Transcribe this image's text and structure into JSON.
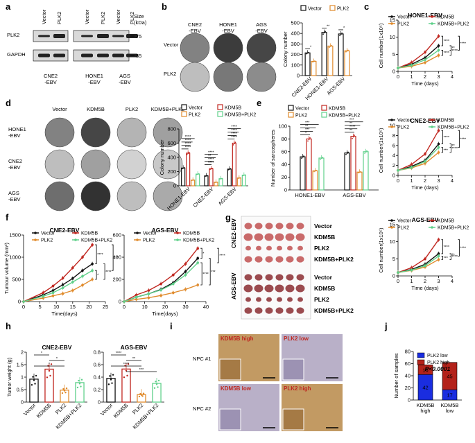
{
  "colors": {
    "vector": "#111111",
    "kdm5b": "#c0261f",
    "plk2": "#e08a2b",
    "combo": "#5fd08a",
    "blue": "#1a2de0",
    "red_bar": "#b3221a"
  },
  "panel_labels": [
    "a",
    "b",
    "c",
    "d",
    "e",
    "f",
    "g",
    "h",
    "i",
    "j"
  ],
  "a": {
    "cols": [
      "Vector",
      "PLK2",
      "Vector",
      "PLK2",
      "Vector",
      "PLK2"
    ],
    "size_label": "Size (kDa)",
    "rows": [
      {
        "name": "PLK2",
        "size": "75"
      },
      {
        "name": "GAPDH",
        "size": "35"
      }
    ],
    "groups": [
      "CNE2\n-EBV",
      "HONE1\n-EBV",
      "AGS\n-EBV"
    ]
  },
  "b": {
    "cols": [
      "CNE2\n-EBV",
      "HONE1\n-EBV",
      "AGS\n-EBV"
    ],
    "rows": [
      "Vector",
      "PLK2"
    ]
  },
  "d": {
    "cols": [
      "Vector",
      "KDM5B",
      "PLK2",
      "KDM5B+PLK2"
    ],
    "rows": [
      "HONE1\n-EBV",
      "CNE2\n-EBV",
      "AGS\n-EBV"
    ]
  },
  "g": {
    "groups": [
      "CNE2-EBV",
      "AGS-EBV"
    ],
    "rows": [
      "Vector",
      "KDM5B",
      "PLK2",
      "KDM5B+PLK2"
    ]
  },
  "i": {
    "rows": [
      "NPC #1",
      "NPC #2"
    ],
    "labels": [
      [
        "KDM5B high",
        "PLK2 low"
      ],
      [
        "KDM5B low",
        "PLK2 high"
      ]
    ]
  },
  "chart_data": [
    {
      "id": "b",
      "type": "bar",
      "ylabel": "Colony number",
      "ylim": [
        0,
        500
      ],
      "yticks": [
        0,
        100,
        200,
        300,
        400,
        500
      ],
      "categories": [
        "CNE2-EBV",
        "HONE1-EBV",
        "AGS-EBV"
      ],
      "series": [
        {
          "name": "Vector",
          "values": [
            215,
            410,
            395
          ]
        },
        {
          "name": "PLK2",
          "values": [
            135,
            280,
            235
          ]
        }
      ],
      "sig": [
        "*",
        "**",
        "*"
      ]
    },
    {
      "id": "c1",
      "type": "line",
      "title": "HONE1-EBV",
      "ylabel": "Cell number(1x10^5)",
      "xlabel": "Time (days)",
      "xlim": [
        0,
        4
      ],
      "ylim": [
        0,
        15
      ],
      "xticks": [
        0,
        1,
        2,
        3,
        4
      ],
      "yticks": [
        0,
        5,
        10,
        15
      ],
      "x": [
        0,
        1,
        2,
        3
      ],
      "series": [
        {
          "name": "Vector",
          "values": [
            1,
            2.1,
            4.0,
            7.5
          ]
        },
        {
          "name": "KDM5B",
          "values": [
            1,
            2.6,
            5.6,
            10.3
          ]
        },
        {
          "name": "PLK2",
          "values": [
            1,
            1.5,
            2.6,
            4.7
          ]
        },
        {
          "name": "KDM5B+PLK2",
          "values": [
            1,
            1.8,
            3.4,
            6.2
          ]
        }
      ],
      "sig": [
        "****",
        "****",
        "****",
        "****",
        "**"
      ]
    },
    {
      "id": "c2",
      "type": "line",
      "title": "CNE2-EBV",
      "ylabel": "Cell number(1x10^5)",
      "xlabel": "Time (days)",
      "xlim": [
        0,
        4
      ],
      "ylim": [
        0,
        10
      ],
      "xticks": [
        0,
        1,
        2,
        3,
        4
      ],
      "yticks": [
        0,
        2,
        4,
        6,
        8,
        10
      ],
      "x": [
        0,
        1,
        2,
        3
      ],
      "series": [
        {
          "name": "Vector",
          "values": [
            1,
            1.8,
            3.0,
            6.3
          ]
        },
        {
          "name": "KDM5B",
          "values": [
            1,
            2.2,
            4.3,
            9.0
          ]
        },
        {
          "name": "PLK2",
          "values": [
            1,
            1.5,
            2.4,
            4.6
          ]
        },
        {
          "name": "KDM5B+PLK2",
          "values": [
            1,
            1.6,
            2.8,
            5.6
          ]
        }
      ],
      "sig": [
        "****",
        "****",
        "****",
        "***",
        "**"
      ]
    },
    {
      "id": "c3",
      "type": "line",
      "title": "AGS-EBV",
      "ylabel": "Cell number(1x10^5)",
      "xlabel": "Time (days)",
      "xlim": [
        0,
        4
      ],
      "ylim": [
        0,
        15
      ],
      "xticks": [
        0,
        1,
        2,
        3,
        4
      ],
      "yticks": [
        0,
        5,
        10,
        15
      ],
      "x": [
        0,
        1,
        2,
        3
      ],
      "series": [
        {
          "name": "Vector",
          "values": [
            1,
            1.9,
            3.4,
            6.5
          ]
        },
        {
          "name": "KDM5B",
          "values": [
            1,
            2.4,
            5.0,
            10.6
          ]
        },
        {
          "name": "PLK2",
          "values": [
            1,
            1.6,
            2.6,
            4.8
          ]
        },
        {
          "name": "KDM5B+PLK2",
          "values": [
            1,
            1.7,
            3.0,
            5.8
          ]
        }
      ],
      "sig": [
        "****",
        "****",
        "****",
        "***",
        "**"
      ]
    },
    {
      "id": "d",
      "type": "bar",
      "ylabel": "Colony number",
      "ylim": [
        0,
        800
      ],
      "yticks": [
        0,
        200,
        400,
        600,
        800
      ],
      "categories": [
        "HONE1-EBV",
        "CNE2-EBV",
        "AGS-EBV"
      ],
      "series": [
        {
          "name": "Vector",
          "values": [
            250,
            140,
            235
          ]
        },
        {
          "name": "KDM5B",
          "values": [
            460,
            240,
            600
          ]
        },
        {
          "name": "PLK2",
          "values": [
            80,
            50,
            110
          ]
        },
        {
          "name": "KDM5B+PLK2",
          "values": [
            165,
            100,
            150
          ]
        }
      ],
      "sig": [
        "****",
        "****",
        "****",
        "****",
        "****",
        "****",
        "**",
        "****",
        "****",
        "****",
        "****",
        "****"
      ]
    },
    {
      "id": "e",
      "type": "bar",
      "ylabel": "Number of sarcospheres",
      "ylim": [
        0,
        100
      ],
      "yticks": [
        0,
        20,
        40,
        60,
        80,
        100
      ],
      "categories": [
        "HONE1-EBV",
        "AGS-EBV"
      ],
      "series": [
        {
          "name": "Vector",
          "values": [
            52,
            58
          ]
        },
        {
          "name": "KDM5B",
          "values": [
            80,
            84
          ]
        },
        {
          "name": "PLK2",
          "values": [
            30,
            28
          ]
        },
        {
          "name": "KDM5B+PLK2",
          "values": [
            50,
            60
          ]
        }
      ],
      "sig": [
        "*",
        "***",
        "**",
        "***",
        "**",
        "****",
        "**",
        "***"
      ]
    },
    {
      "id": "f1",
      "type": "line",
      "title": "CNE2-EBV",
      "ylabel": "Tumour volume (mm^3)",
      "xlabel": "Time(days)",
      "xlim": [
        0,
        25
      ],
      "ylim": [
        0,
        1500
      ],
      "xticks": [
        0,
        5,
        10,
        15,
        20,
        25
      ],
      "yticks": [
        0,
        500,
        1000,
        1500
      ],
      "x": [
        0,
        6,
        9,
        12,
        15,
        18,
        21
      ],
      "series": [
        {
          "name": "Vector",
          "values": [
            0,
            150,
            250,
            380,
            520,
            700,
            850
          ]
        },
        {
          "name": "KDM5B",
          "values": [
            0,
            200,
            350,
            530,
            760,
            1000,
            1280
          ]
        },
        {
          "name": "PLK2",
          "values": [
            0,
            80,
            130,
            180,
            250,
            370,
            500
          ]
        },
        {
          "name": "KDM5B+PLK2",
          "values": [
            0,
            120,
            200,
            310,
            440,
            570,
            700
          ]
        }
      ],
      "sig": [
        "****",
        "****",
        "***",
        "*"
      ]
    },
    {
      "id": "f2",
      "type": "line",
      "title": "AGS-EBV",
      "ylabel": "",
      "xlabel": "Time(days)",
      "xlim": [
        0,
        40
      ],
      "ylim": [
        0,
        600
      ],
      "xticks": [
        0,
        10,
        20,
        30,
        40
      ],
      "yticks": [
        0,
        200,
        400,
        600
      ],
      "x": [
        0,
        6,
        12,
        18,
        24,
        30,
        36
      ],
      "series": [
        {
          "name": "Vector",
          "values": [
            0,
            40,
            70,
            110,
            170,
            270,
            390
          ]
        },
        {
          "name": "KDM5B",
          "values": [
            0,
            60,
            100,
            160,
            240,
            340,
            480
          ]
        },
        {
          "name": "PLK2",
          "values": [
            0,
            20,
            35,
            55,
            80,
            110,
            150
          ]
        },
        {
          "name": "KDM5B+PLK2",
          "values": [
            0,
            40,
            70,
            105,
            160,
            240,
            350
          ]
        }
      ],
      "sig": [
        "*",
        "***",
        "****",
        "****"
      ]
    },
    {
      "id": "h1",
      "type": "bar",
      "title": "CNE2-EBV",
      "ylabel": "Tumor weight (g)",
      "ylim": [
        0,
        2.0
      ],
      "yticks": [
        0,
        0.5,
        1.0,
        1.5,
        2.0
      ],
      "categories": [
        "Vector",
        "KDM5B",
        "PLK2",
        "KDM5B+PLK2"
      ],
      "values": [
        0.92,
        1.32,
        0.48,
        0.78
      ],
      "sig": [
        "*",
        "*",
        "*"
      ]
    },
    {
      "id": "h2",
      "type": "bar",
      "title": "AGS-EBV",
      "ylabel": "",
      "ylim": [
        0,
        0.8
      ],
      "yticks": [
        0,
        0.2,
        0.4,
        0.6,
        0.8
      ],
      "categories": [
        "Vector",
        "KDM5B",
        "PLK2",
        "KDM5B+PLK2"
      ],
      "values": [
        0.38,
        0.53,
        0.12,
        0.3
      ],
      "sig": [
        "****",
        "**",
        "****",
        "***"
      ]
    },
    {
      "id": "j",
      "type": "bar",
      "ylabel": "Number of samples",
      "ylim": [
        0,
        80
      ],
      "yticks": [
        0,
        20,
        40,
        60,
        80
      ],
      "categories": [
        "KDM5B\nhigh",
        "KDM5B\nlow"
      ],
      "series": [
        {
          "name": "PLK2 low",
          "values": [
            42,
            17
          ]
        },
        {
          "name": "PLK2 high",
          "values": [
            16,
            45
          ]
        }
      ],
      "annotation": "P<0.0001"
    }
  ]
}
